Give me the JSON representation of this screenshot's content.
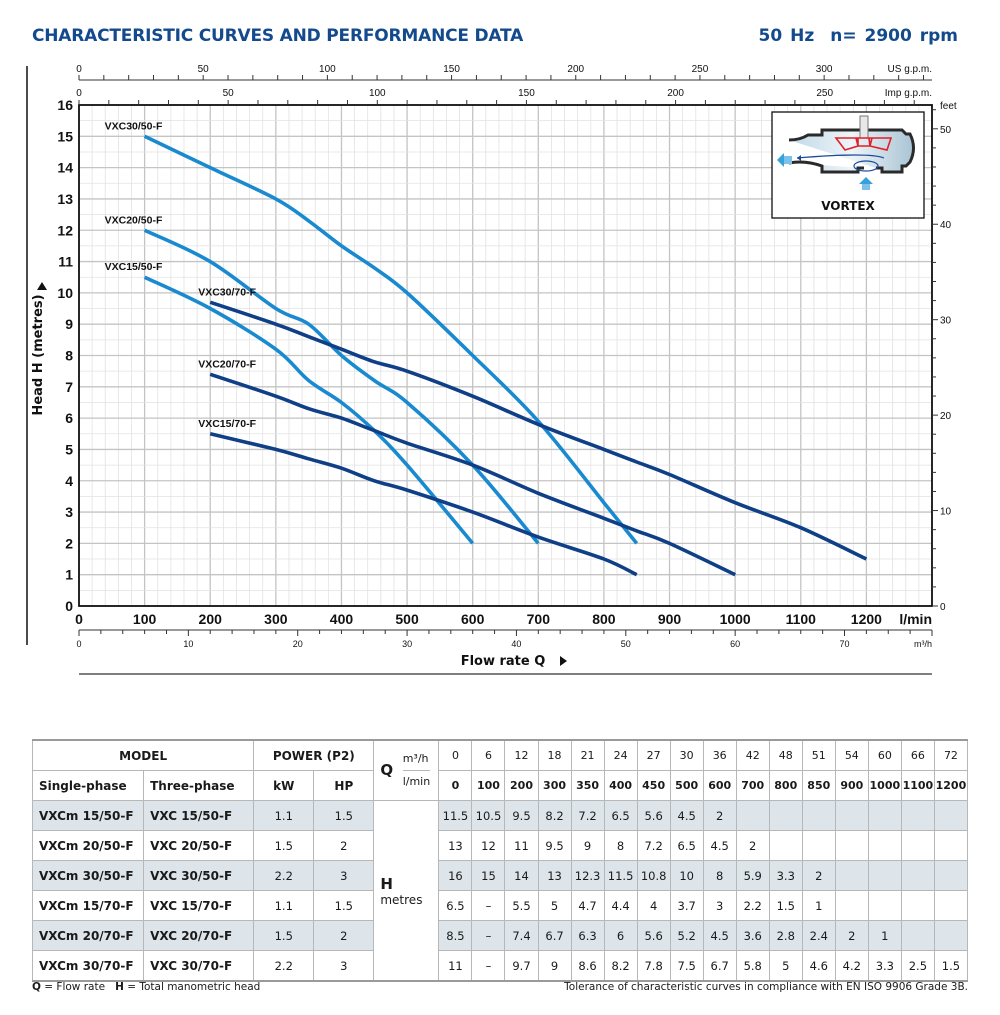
{
  "header": {
    "title": "CHARACTERISTIC CURVES AND PERFORMANCE DATA",
    "frequency": "50 Hz",
    "speed": "n= 2900 rpm"
  },
  "vortex_label": "VORTEX",
  "colors": {
    "title": "#134a8e",
    "curve_50": "#1a8ad0",
    "curve_70": "#0f3f86",
    "grid": "#c8c8c8",
    "shade": "#dde5ea"
  },
  "chart_data": {
    "type": "line",
    "title": "CHARACTERISTIC CURVES AND PERFORMANCE DATA",
    "xlabel": "Flow rate  Q",
    "ylabel": "Head H  (metres)",
    "xunit": "l/min",
    "xlim": [
      0,
      1300
    ],
    "ylim": [
      0,
      16
    ],
    "grid": true,
    "x_ticks": [
      0,
      100,
      200,
      300,
      400,
      500,
      600,
      700,
      800,
      900,
      1000,
      1100,
      1200
    ],
    "y_ticks": [
      0,
      1,
      2,
      3,
      4,
      5,
      6,
      7,
      8,
      9,
      10,
      11,
      12,
      13,
      14,
      15,
      16
    ],
    "secondary_axes": {
      "us_gpm": {
        "label": "US g.p.m.",
        "ticks": [
          0,
          50,
          100,
          150,
          200,
          250,
          300
        ]
      },
      "imp_gpm": {
        "label": "Imp g.p.m.",
        "ticks": [
          0,
          50,
          100,
          150,
          200,
          250
        ]
      },
      "m3h": {
        "label": "m³/h",
        "ticks": [
          0,
          10,
          20,
          30,
          40,
          50,
          60,
          70
        ]
      },
      "feet": {
        "label": "feet",
        "ticks": [
          0,
          10,
          20,
          30,
          40,
          50
        ]
      }
    },
    "series": [
      {
        "name": "VXC30/50-F",
        "group": "50",
        "x": [
          100,
          200,
          300,
          350,
          400,
          450,
          500,
          600,
          700,
          800,
          850
        ],
        "y": [
          15,
          14,
          13,
          12.3,
          11.5,
          10.8,
          10,
          8,
          5.9,
          3.3,
          2
        ]
      },
      {
        "name": "VXC20/50-F",
        "group": "50",
        "x": [
          100,
          200,
          300,
          350,
          400,
          450,
          500,
          600,
          700
        ],
        "y": [
          12,
          11,
          9.5,
          9,
          8,
          7.2,
          6.5,
          4.5,
          2
        ]
      },
      {
        "name": "VXC15/50-F",
        "group": "50",
        "x": [
          100,
          200,
          300,
          350,
          400,
          450,
          500,
          600
        ],
        "y": [
          10.5,
          9.5,
          8.2,
          7.2,
          6.5,
          5.6,
          4.5,
          2
        ]
      },
      {
        "name": "VXC30/70-F",
        "group": "70",
        "x": [
          200,
          300,
          350,
          400,
          450,
          500,
          600,
          700,
          800,
          850,
          900,
          1000,
          1100,
          1200
        ],
        "y": [
          9.7,
          9,
          8.6,
          8.2,
          7.8,
          7.5,
          6.7,
          5.8,
          5,
          4.6,
          4.2,
          3.3,
          2.5,
          1.5
        ]
      },
      {
        "name": "VXC20/70-F",
        "group": "70",
        "x": [
          200,
          300,
          350,
          400,
          450,
          500,
          600,
          700,
          800,
          850,
          900,
          1000
        ],
        "y": [
          7.4,
          6.7,
          6.3,
          6,
          5.6,
          5.2,
          4.5,
          3.6,
          2.8,
          2.4,
          2,
          1
        ]
      },
      {
        "name": "VXC15/70-F",
        "group": "70",
        "x": [
          200,
          300,
          350,
          400,
          450,
          500,
          600,
          700,
          800,
          850
        ],
        "y": [
          5.5,
          5,
          4.7,
          4.4,
          4,
          3.7,
          3,
          2.2,
          1.5,
          1
        ]
      }
    ]
  },
  "table": {
    "model_header": "MODEL",
    "power_header": "POWER (P2)",
    "single_phase": "Single-phase",
    "three_phase": "Three-phase",
    "kw": "kW",
    "hp": "HP",
    "q_label": "Q",
    "q_unit_m3h": "m³/h",
    "q_unit_lmin": "l/min",
    "h_label": "H",
    "h_unit": "metres",
    "q_m3h": [
      "0",
      "6",
      "12",
      "18",
      "21",
      "24",
      "27",
      "30",
      "36",
      "42",
      "48",
      "51",
      "54",
      "60",
      "66",
      "72"
    ],
    "q_lmin": [
      "0",
      "100",
      "200",
      "300",
      "350",
      "400",
      "450",
      "500",
      "600",
      "700",
      "800",
      "850",
      "900",
      "1000",
      "1100",
      "1200"
    ],
    "rows": [
      {
        "single": "VXCm 15/50-F",
        "three": "VXC 15/50-F",
        "kw": "1.1",
        "hp": "1.5",
        "h": [
          "11.5",
          "10.5",
          "9.5",
          "8.2",
          "7.2",
          "6.5",
          "5.6",
          "4.5",
          "2",
          "",
          "",
          "",
          "",
          "",
          "",
          ""
        ]
      },
      {
        "single": "VXCm 20/50-F",
        "three": "VXC 20/50-F",
        "kw": "1.5",
        "hp": "2",
        "h": [
          "13",
          "12",
          "11",
          "9.5",
          "9",
          "8",
          "7.2",
          "6.5",
          "4.5",
          "2",
          "",
          "",
          "",
          "",
          "",
          ""
        ]
      },
      {
        "single": "VXCm 30/50-F",
        "three": "VXC 30/50-F",
        "kw": "2.2",
        "hp": "3",
        "h": [
          "16",
          "15",
          "14",
          "13",
          "12.3",
          "11.5",
          "10.8",
          "10",
          "8",
          "5.9",
          "3.3",
          "2",
          "",
          "",
          "",
          ""
        ]
      },
      {
        "single": "VXCm 15/70-F",
        "three": "VXC 15/70-F",
        "kw": "1.1",
        "hp": "1.5",
        "h": [
          "6.5",
          "–",
          "5.5",
          "5",
          "4.7",
          "4.4",
          "4",
          "3.7",
          "3",
          "2.2",
          "1.5",
          "1",
          "",
          "",
          "",
          ""
        ]
      },
      {
        "single": "VXCm 20/70-F",
        "three": "VXC 20/70-F",
        "kw": "1.5",
        "hp": "2",
        "h": [
          "8.5",
          "–",
          "7.4",
          "6.7",
          "6.3",
          "6",
          "5.6",
          "5.2",
          "4.5",
          "3.6",
          "2.8",
          "2.4",
          "2",
          "1",
          "",
          ""
        ]
      },
      {
        "single": "VXCm 30/70-F",
        "three": "VXC 30/70-F",
        "kw": "2.2",
        "hp": "3",
        "h": [
          "11",
          "–",
          "9.7",
          "9",
          "8.6",
          "8.2",
          "7.8",
          "7.5",
          "6.7",
          "5.8",
          "5",
          "4.6",
          "4.2",
          "3.3",
          "2.5",
          "1.5"
        ]
      }
    ]
  },
  "footer": {
    "q_sym": "Q",
    "q_def": " = Flow rate",
    "h_sym": "H",
    "h_def": " = Total manometric head",
    "tolerance": "Tolerance of characteristic curves in compliance with EN ISO 9906 Grade 3B."
  }
}
